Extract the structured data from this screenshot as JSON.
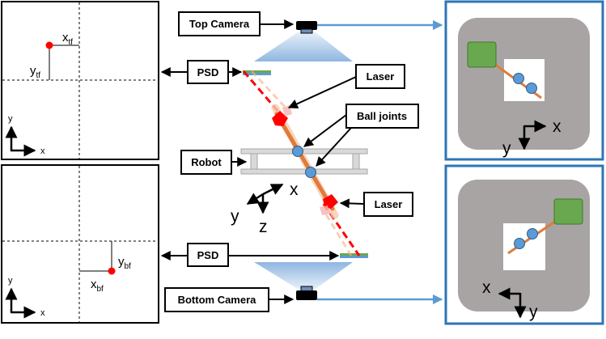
{
  "labels": {
    "top_camera": "Top Camera",
    "bottom_camera": "Bottom Camera",
    "psd_top": "PSD",
    "psd_bottom": "PSD",
    "laser_top": "Laser",
    "laser_bottom": "Laser",
    "ball_joints": "Ball joints",
    "robot": "Robot"
  },
  "top_psd_plot": {
    "x_main": "x",
    "x_sub": "tf",
    "y_main": "y",
    "y_sub": "tf",
    "axis_x": "x",
    "axis_y": "y"
  },
  "bottom_psd_plot": {
    "x_main": "x",
    "x_sub": "bf",
    "y_main": "y",
    "y_sub": "bf",
    "axis_x": "x",
    "axis_y": "y"
  },
  "robot_frame": {
    "x": "x",
    "y": "y",
    "z": "z"
  },
  "top_camera_view": {
    "axis_x": "x",
    "axis_y": "y"
  },
  "bottom_camera_view": {
    "axis_x": "x",
    "axis_y": "y"
  },
  "colors": {
    "spot": "#ff0000",
    "laser": "#ff0000",
    "rod": "#e07b39",
    "ball": "#5b9bd5",
    "camera_frame": "#2e75b6",
    "camera_bg": "#a8a4a4",
    "end_effector": "#6aa84f",
    "beam": "#9dc3e6"
  }
}
